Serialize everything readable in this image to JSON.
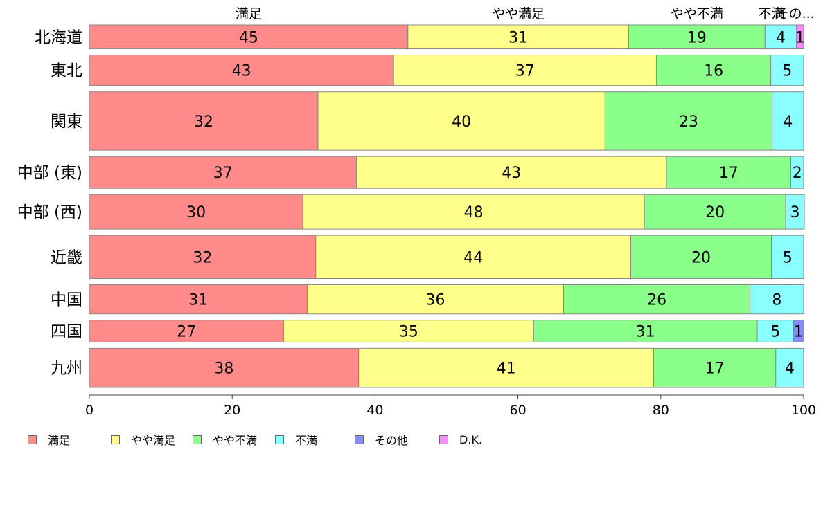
{
  "chart_data": {
    "type": "bar",
    "orientation": "horizontal",
    "stacked": true,
    "title": "",
    "xlabel": "",
    "ylabel": "",
    "xlim": [
      0,
      100
    ],
    "x_ticks": [
      0,
      20,
      40,
      60,
      80,
      100
    ],
    "grid": false,
    "legend_position": "bottom",
    "top_labels": [
      "満足",
      "やや満足",
      "やや不満",
      "不満",
      "その..."
    ],
    "categories": [
      "北海道",
      "東北",
      "関東",
      "中部 (東)",
      "中部 (西)",
      "近畿",
      "中国",
      "四国",
      "九州"
    ],
    "category_weights": [
      0.36,
      0.46,
      0.88,
      0.48,
      0.52,
      0.65,
      0.44,
      0.33,
      0.59
    ],
    "series": [
      {
        "name": "満足",
        "color": "#ff8a8a",
        "values": [
          44.6,
          42.6,
          32.0,
          37.4,
          29.9,
          31.7,
          30.5,
          27.2,
          37.7
        ]
      },
      {
        "name": "やや満足",
        "color": "#ffff8a",
        "values": [
          30.9,
          36.8,
          40.2,
          43.4,
          47.8,
          44.1,
          35.9,
          35.0,
          41.3
        ]
      },
      {
        "name": "やや不満",
        "color": "#8aff8a",
        "values": [
          19.1,
          16.0,
          23.4,
          17.4,
          19.8,
          19.7,
          26.1,
          31.3,
          17.1
        ]
      },
      {
        "name": "不満",
        "color": "#8affff",
        "values": [
          4.4,
          4.6,
          4.4,
          1.8,
          2.6,
          4.5,
          7.5,
          5.1,
          3.9
        ]
      },
      {
        "name": "その他",
        "color": "#8a8aff",
        "values": [
          0,
          0,
          0,
          0,
          0,
          0,
          0,
          1.4,
          0
        ]
      },
      {
        "name": "D.K.",
        "color": "#ff8aff",
        "values": [
          1.0,
          0,
          0,
          0,
          0,
          0,
          0,
          0,
          0
        ]
      }
    ],
    "data_labels": [
      [
        "45",
        "31",
        "19",
        "4",
        "",
        "1"
      ],
      [
        "43",
        "37",
        "16",
        "5",
        "",
        ""
      ],
      [
        "32",
        "40",
        "23",
        "4",
        "",
        ""
      ],
      [
        "37",
        "43",
        "17",
        "2",
        "",
        ""
      ],
      [
        "30",
        "48",
        "20",
        "3",
        "",
        ""
      ],
      [
        "32",
        "44",
        "20",
        "5",
        "",
        ""
      ],
      [
        "31",
        "36",
        "26",
        "8",
        "",
        ""
      ],
      [
        "27",
        "35",
        "31",
        "5",
        "1",
        ""
      ],
      [
        "38",
        "41",
        "17",
        "4",
        "",
        ""
      ]
    ]
  }
}
